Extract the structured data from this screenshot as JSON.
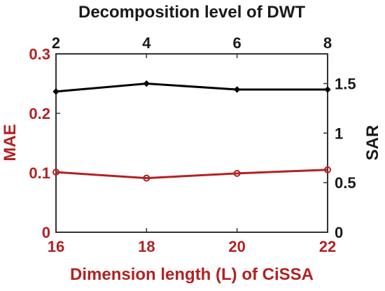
{
  "chart_data": {
    "type": "line",
    "title": "",
    "x_bottom": {
      "label": "Dimension length (L) of CiSSA",
      "ticks": [
        16,
        18,
        20,
        22
      ],
      "range": [
        16,
        22
      ],
      "color": "#b22222"
    },
    "x_top": {
      "label": "Decomposition level of DWT",
      "ticks": [
        2,
        4,
        6,
        8
      ],
      "range": [
        2,
        8
      ],
      "color": "#1a1a1a"
    },
    "y_left": {
      "label": "MAE",
      "ticks": [
        0,
        0.1,
        0.2,
        0.3
      ],
      "tick_labels": [
        "0",
        "0.1",
        "0.2",
        "0.3"
      ],
      "range": [
        0,
        0.3
      ],
      "color": "#b22222"
    },
    "y_right": {
      "label": "SAR",
      "ticks": [
        0,
        0.5,
        1,
        1.5
      ],
      "tick_labels": [
        "0",
        "0.5",
        "1",
        "1.5"
      ],
      "range": [
        0,
        1.8
      ],
      "color": "#1a1a1a"
    },
    "series": [
      {
        "axis": "bottom-left",
        "color": "#b22222",
        "marker": "circle",
        "x": [
          16,
          18,
          20,
          22
        ],
        "y": [
          0.101,
          0.091,
          0.099,
          0.105
        ]
      },
      {
        "axis": "top-right",
        "color": "#000000",
        "marker": "diamond",
        "x": [
          2,
          4,
          6,
          8
        ],
        "y": [
          1.42,
          1.5,
          1.44,
          1.44
        ]
      }
    ],
    "grid": false,
    "legend": "none"
  }
}
